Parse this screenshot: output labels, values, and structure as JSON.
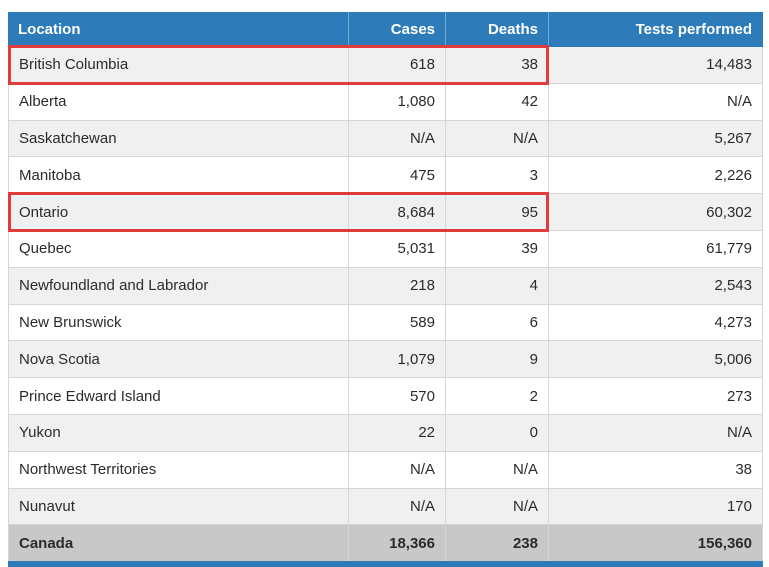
{
  "chart_data": {
    "type": "table",
    "title": "",
    "columns": [
      "Location",
      "Cases",
      "Deaths",
      "Tests performed"
    ],
    "rows": [
      [
        "British Columbia",
        "618",
        "38",
        "14,483"
      ],
      [
        "Alberta",
        "1,080",
        "42",
        "N/A"
      ],
      [
        "Saskatchewan",
        "N/A",
        "N/A",
        "5,267"
      ],
      [
        "Manitoba",
        "475",
        "3",
        "2,226"
      ],
      [
        "Ontario",
        "8,684",
        "95",
        "60,302"
      ],
      [
        "Quebec",
        "5,031",
        "39",
        "61,779"
      ],
      [
        "Newfoundland and Labrador",
        "218",
        "4",
        "2,543"
      ],
      [
        "New Brunswick",
        "589",
        "6",
        "4,273"
      ],
      [
        "Nova Scotia",
        "1,079",
        "9",
        "5,006"
      ],
      [
        "Prince Edward Island",
        "570",
        "2",
        "273"
      ],
      [
        "Yukon",
        "22",
        "0",
        "N/A"
      ],
      [
        "Northwest Territories",
        "N/A",
        "N/A",
        "38"
      ],
      [
        "Nunavut",
        "N/A",
        "N/A",
        "170"
      ],
      [
        "Canada",
        "18,366",
        "238",
        "156,360"
      ]
    ],
    "highlighted_rows": [
      "British Columbia",
      "Ontario"
    ],
    "total_row": "Canada"
  },
  "table": {
    "columns": [
      {
        "label": "Location",
        "align": "left"
      },
      {
        "label": "Cases",
        "align": "right"
      },
      {
        "label": "Deaths",
        "align": "right"
      },
      {
        "label": "Tests performed",
        "align": "right"
      }
    ],
    "rows": [
      {
        "location": "British Columbia",
        "cases": "618",
        "deaths": "38",
        "tests": "14,483",
        "highlighted": true,
        "total": false
      },
      {
        "location": "Alberta",
        "cases": "1,080",
        "deaths": "42",
        "tests": "N/A",
        "highlighted": false,
        "total": false
      },
      {
        "location": "Saskatchewan",
        "cases": "N/A",
        "deaths": "N/A",
        "tests": "5,267",
        "highlighted": false,
        "total": false
      },
      {
        "location": "Manitoba",
        "cases": "475",
        "deaths": "3",
        "tests": "2,226",
        "highlighted": false,
        "total": false
      },
      {
        "location": "Ontario",
        "cases": "8,684",
        "deaths": "95",
        "tests": "60,302",
        "highlighted": true,
        "total": false
      },
      {
        "location": "Quebec",
        "cases": "5,031",
        "deaths": "39",
        "tests": "61,779",
        "highlighted": false,
        "total": false
      },
      {
        "location": "Newfoundland and Labrador",
        "cases": "218",
        "deaths": "4",
        "tests": "2,543",
        "highlighted": false,
        "total": false
      },
      {
        "location": "New Brunswick",
        "cases": "589",
        "deaths": "6",
        "tests": "4,273",
        "highlighted": false,
        "total": false
      },
      {
        "location": "Nova Scotia",
        "cases": "1,079",
        "deaths": "9",
        "tests": "5,006",
        "highlighted": false,
        "total": false
      },
      {
        "location": "Prince Edward Island",
        "cases": "570",
        "deaths": "2",
        "tests": "273",
        "highlighted": false,
        "total": false
      },
      {
        "location": "Yukon",
        "cases": "22",
        "deaths": "0",
        "tests": "N/A",
        "highlighted": false,
        "total": false
      },
      {
        "location": "Northwest Territories",
        "cases": "N/A",
        "deaths": "N/A",
        "tests": "38",
        "highlighted": false,
        "total": false
      },
      {
        "location": "Nunavut",
        "cases": "N/A",
        "deaths": "N/A",
        "tests": "170",
        "highlighted": false,
        "total": false
      },
      {
        "location": "Canada",
        "cases": "18,366",
        "deaths": "238",
        "tests": "156,360",
        "highlighted": false,
        "total": true
      }
    ]
  },
  "colors": {
    "header_blue": "#2d7cb9",
    "highlight_red": "#e13c3c",
    "total_row_bg": "#c8c8c8",
    "zebra_gray": "#f0f0f0",
    "border_gray": "#d6d6d6"
  }
}
